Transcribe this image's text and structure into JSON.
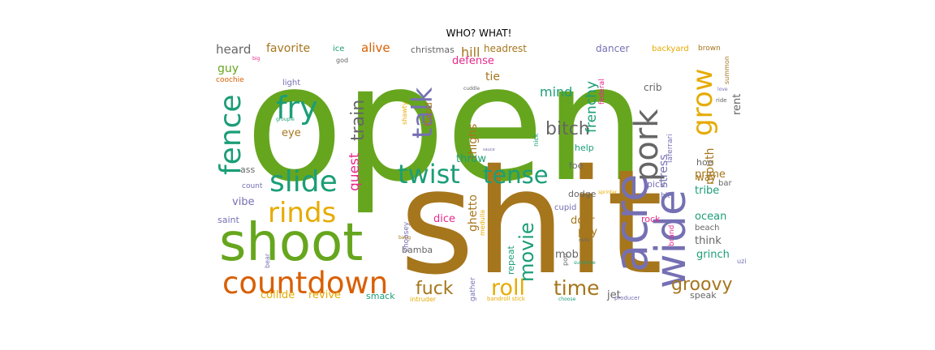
{
  "title": "WHO? WHAT!",
  "colors": {
    "green": "#66a61e",
    "brown": "#a6761d",
    "orange": "#d95f02",
    "gold": "#e6ab02",
    "teal": "#1b9e77",
    "purple": "#7570b3",
    "pink": "#e7298a",
    "gray": "#666666"
  },
  "words": [
    {
      "text": "open",
      "color": "green",
      "rotate": false
    },
    {
      "text": "shit",
      "color": "brown",
      "rotate": false
    },
    {
      "text": "shoot",
      "color": "green",
      "rotate": false
    },
    {
      "text": "countdown",
      "color": "orange",
      "rotate": false
    },
    {
      "text": "fence",
      "color": "teal",
      "rotate": true
    },
    {
      "text": "slide",
      "color": "teal",
      "rotate": false
    },
    {
      "text": "rinds",
      "color": "gold",
      "rotate": false
    },
    {
      "text": "fry",
      "color": "teal",
      "rotate": false
    },
    {
      "text": "twist",
      "color": "teal",
      "rotate": false
    },
    {
      "text": "tense",
      "color": "teal",
      "rotate": false
    },
    {
      "text": "acre",
      "color": "purple",
      "rotate": true
    },
    {
      "text": "wide",
      "color": "purple",
      "rotate": true
    },
    {
      "text": "pork",
      "color": "gray",
      "rotate": true
    },
    {
      "text": "grow",
      "color": "gold",
      "rotate": true
    },
    {
      "text": "talk",
      "color": "purple",
      "rotate": true
    },
    {
      "text": "bitch",
      "color": "gray",
      "rotate": false
    },
    {
      "text": "roll",
      "color": "gold",
      "rotate": false
    },
    {
      "text": "time",
      "color": "brown",
      "rotate": false
    },
    {
      "text": "fuck",
      "color": "brown",
      "rotate": false
    },
    {
      "text": "groovy",
      "color": "brown",
      "rotate": false
    },
    {
      "text": "movie",
      "color": "teal",
      "rotate": true
    },
    {
      "text": "train",
      "color": "gray",
      "rotate": true
    },
    {
      "text": "quest",
      "color": "pink",
      "rotate": true
    },
    {
      "text": "heard",
      "color": "gray",
      "rotate": false
    },
    {
      "text": "favorite",
      "color": "brown",
      "rotate": false
    },
    {
      "text": "alive",
      "color": "orange",
      "rotate": false
    },
    {
      "text": "christmas",
      "color": "gray",
      "rotate": false
    },
    {
      "text": "hill",
      "color": "brown",
      "rotate": false
    },
    {
      "text": "headrest",
      "color": "brown",
      "rotate": false
    },
    {
      "text": "dancer",
      "color": "purple",
      "rotate": false
    },
    {
      "text": "backyard",
      "color": "gold",
      "rotate": false
    },
    {
      "text": "brown",
      "color": "brown",
      "rotate": false
    },
    {
      "text": "ice",
      "color": "teal",
      "rotate": false
    },
    {
      "text": "god",
      "color": "gray",
      "rotate": false
    },
    {
      "text": "defense",
      "color": "pink",
      "rotate": false
    },
    {
      "text": "guy",
      "color": "green",
      "rotate": false
    },
    {
      "text": "coochie",
      "color": "orange",
      "rotate": false
    },
    {
      "text": "light",
      "color": "purple",
      "rotate": false
    },
    {
      "text": "iconic",
      "color": "green",
      "rotate": false
    },
    {
      "text": "tie",
      "color": "brown",
      "rotate": false
    },
    {
      "text": "mind",
      "color": "teal",
      "rotate": false
    },
    {
      "text": "frenchy",
      "color": "teal",
      "rotate": true
    },
    {
      "text": "crib",
      "color": "gray",
      "rotate": false
    },
    {
      "text": "rent",
      "color": "gray",
      "rotate": true
    },
    {
      "text": "summon",
      "color": "brown",
      "rotate": true
    },
    {
      "text": "eye",
      "color": "brown",
      "rotate": false
    },
    {
      "text": "flood",
      "color": "brown",
      "rotate": true
    },
    {
      "text": "thighs",
      "color": "brown",
      "rotate": true
    },
    {
      "text": "mouth",
      "color": "brown",
      "rotate": true
    },
    {
      "text": "stress",
      "color": "purple",
      "rotate": true
    },
    {
      "text": "hoe",
      "color": "gray",
      "rotate": false
    },
    {
      "text": "way",
      "color": "brown",
      "rotate": false
    },
    {
      "text": "bar",
      "color": "gray",
      "rotate": false
    },
    {
      "text": "ass",
      "color": "gray",
      "rotate": false
    },
    {
      "text": "count",
      "color": "purple",
      "rotate": false
    },
    {
      "text": "vibe",
      "color": "purple",
      "rotate": false
    },
    {
      "text": "throw",
      "color": "teal",
      "rotate": false
    },
    {
      "text": "help",
      "color": "teal",
      "rotate": false
    },
    {
      "text": "foe",
      "color": "gray",
      "rotate": false
    },
    {
      "text": "prime",
      "color": "brown",
      "rotate": false
    },
    {
      "text": "tribe",
      "color": "teal",
      "rotate": false
    },
    {
      "text": "pick",
      "color": "purple",
      "rotate": false
    },
    {
      "text": "hit",
      "color": "purple",
      "rotate": false
    },
    {
      "text": "dodge",
      "color": "gray",
      "rotate": false
    },
    {
      "text": "cupid",
      "color": "purple",
      "rotate": false
    },
    {
      "text": "door",
      "color": "brown",
      "rotate": false
    },
    {
      "text": "ocean",
      "color": "teal",
      "rotate": false
    },
    {
      "text": "beach",
      "color": "gray",
      "rotate": false
    },
    {
      "text": "saint",
      "color": "purple",
      "rotate": false
    },
    {
      "text": "ghetto",
      "color": "brown",
      "rotate": true
    },
    {
      "text": "dice",
      "color": "pink",
      "rotate": false
    },
    {
      "text": "pay",
      "color": "brown",
      "rotate": false
    },
    {
      "text": "rock",
      "color": "pink",
      "rotate": false
    },
    {
      "text": "think",
      "color": "gray",
      "rotate": false
    },
    {
      "text": "mob",
      "color": "gray",
      "rotate": false
    },
    {
      "text": "grinch",
      "color": "teal",
      "rotate": false
    },
    {
      "text": "bamba",
      "color": "gray",
      "rotate": false
    },
    {
      "text": "repeat",
      "color": "teal",
      "rotate": true
    },
    {
      "text": "uzi",
      "color": "purple",
      "rotate": false
    },
    {
      "text": "collide",
      "color": "gold",
      "rotate": false
    },
    {
      "text": "revive",
      "color": "gold",
      "rotate": false
    },
    {
      "text": "smack",
      "color": "teal",
      "rotate": false
    },
    {
      "text": "intruder",
      "color": "gold",
      "rotate": false
    },
    {
      "text": "gather",
      "color": "purple",
      "rotate": true
    },
    {
      "text": "jet",
      "color": "gray",
      "rotate": false
    },
    {
      "text": "producer",
      "color": "purple",
      "rotate": false
    },
    {
      "text": "speak",
      "color": "gray",
      "rotate": false
    },
    {
      "text": "bandroll stick",
      "color": "gold",
      "rotate": false
    },
    {
      "text": "choose",
      "color": "teal",
      "rotate": false
    },
    {
      "text": "choosey",
      "color": "purple",
      "rotate": true
    },
    {
      "text": "medulla",
      "color": "gold",
      "rotate": true
    },
    {
      "text": "bang",
      "color": "brown",
      "rotate": false
    },
    {
      "text": "bear",
      "color": "purple",
      "rotate": true
    },
    {
      "text": "nick",
      "color": "teal",
      "rotate": true
    },
    {
      "text": "federal",
      "color": "pink",
      "rotate": true
    },
    {
      "text": "laferrari",
      "color": "purple",
      "rotate": true
    },
    {
      "text": "ride",
      "color": "gray",
      "rotate": false
    },
    {
      "text": "love",
      "color": "purple",
      "rotate": false
    },
    {
      "text": "brand",
      "color": "pink",
      "rotate": true
    },
    {
      "text": "shawty",
      "color": "gold",
      "rotate": true
    },
    {
      "text": "cuddle",
      "color": "gray",
      "rotate": false
    },
    {
      "text": "groupie",
      "color": "teal",
      "rotate": false
    },
    {
      "text": "sprinter",
      "color": "gold",
      "rotate": false
    },
    {
      "text": "pop",
      "color": "gray",
      "rotate": true
    },
    {
      "text": "nuts",
      "color": "gray",
      "rotate": false
    },
    {
      "text": "sunshine",
      "color": "teal",
      "rotate": false
    },
    {
      "text": "sauce",
      "color": "purple",
      "rotate": false
    },
    {
      "text": "big",
      "color": "pink",
      "rotate": false
    }
  ]
}
